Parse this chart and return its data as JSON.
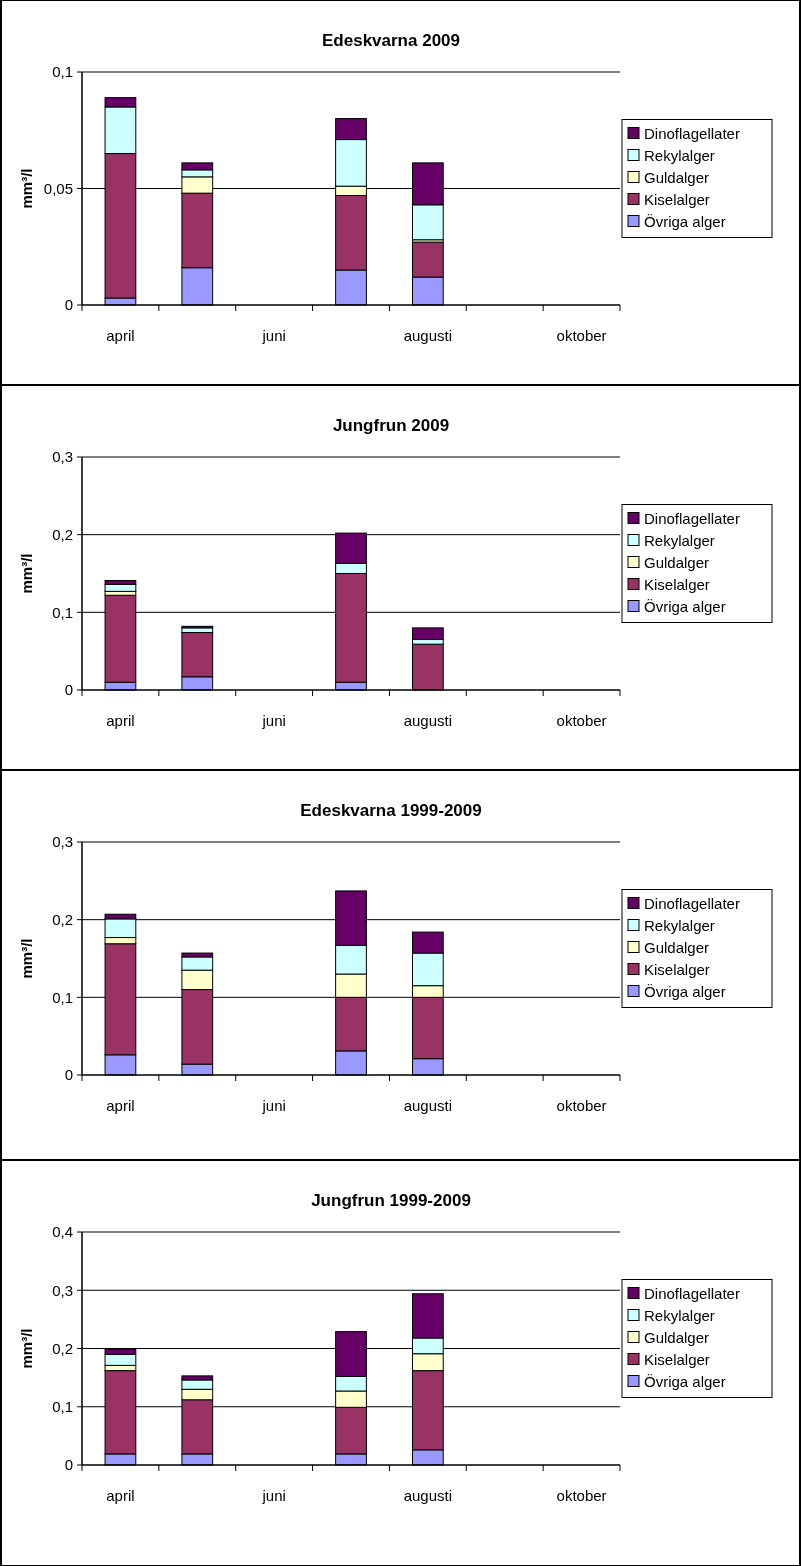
{
  "chart_data": [
    {
      "type": "bar",
      "title": "Edeskvarna  2009",
      "ylabel": "mm³/l",
      "categories": [
        "april",
        null,
        "juni",
        null,
        "augusti",
        null,
        "oktober"
      ],
      "stacked": true,
      "grid": "y",
      "legend": "right",
      "ylim": [
        0,
        0.1
      ],
      "yticks": [
        {
          "value": 0,
          "label": "0"
        },
        {
          "value": 0.05,
          "label": "0,05"
        },
        {
          "value": 0.1,
          "label": "0,1"
        }
      ],
      "series": [
        {
          "name": "Övriga alger",
          "color": "#9999ff",
          "values": [
            0.003,
            0.016,
            null,
            0.015,
            0.012,
            null,
            null
          ]
        },
        {
          "name": "Kiselalger",
          "color": "#993366",
          "values": [
            0.062,
            0.032,
            null,
            0.032,
            0.015,
            null,
            null
          ]
        },
        {
          "name": "Guldalger",
          "color": "#ffffcc",
          "values": [
            0,
            0.007,
            null,
            0.004,
            0.001,
            null,
            null
          ]
        },
        {
          "name": "Rekylalger",
          "color": "#ccffff",
          "values": [
            0.02,
            0.003,
            null,
            0.02,
            0.015,
            null,
            null
          ]
        },
        {
          "name": "Dinoflagellater",
          "color": "#660066",
          "values": [
            0.004,
            0.003,
            null,
            0.009,
            0.018,
            null,
            null
          ]
        }
      ]
    },
    {
      "type": "bar",
      "title": "Jungfrun 2009",
      "ylabel": "mm³/l",
      "categories": [
        "april",
        null,
        "juni",
        null,
        "augusti",
        null,
        "oktober"
      ],
      "stacked": true,
      "grid": "y",
      "legend": "right",
      "ylim": [
        0,
        0.3
      ],
      "yticks": [
        {
          "value": 0,
          "label": "0"
        },
        {
          "value": 0.1,
          "label": "0,1"
        },
        {
          "value": 0.2,
          "label": "0,2"
        },
        {
          "value": 0.3,
          "label": "0,3"
        }
      ],
      "series": [
        {
          "name": "Övriga alger",
          "color": "#9999ff",
          "values": [
            0.01,
            0.017,
            null,
            0.01,
            null,
            null,
            null
          ]
        },
        {
          "name": "Kiselalger",
          "color": "#993366",
          "values": [
            0.112,
            0.057,
            null,
            0.14,
            0.059,
            null,
            null
          ]
        },
        {
          "name": "Guldalger",
          "color": "#ffffcc",
          "values": [
            0.005,
            null,
            null,
            null,
            null,
            null,
            null
          ]
        },
        {
          "name": "Rekylalger",
          "color": "#ccffff",
          "values": [
            0.009,
            0.006,
            null,
            0.013,
            0.006,
            null,
            null
          ]
        },
        {
          "name": "Dinoflagellater",
          "color": "#660066",
          "values": [
            0.005,
            0.002,
            null,
            0.039,
            0.015,
            null,
            null
          ]
        }
      ]
    },
    {
      "type": "bar",
      "title": "Edeskvarna  1999-2009",
      "ylabel": "mm³/l",
      "categories": [
        "april",
        null,
        "juni",
        null,
        "augusti",
        null,
        "oktober"
      ],
      "stacked": true,
      "grid": "y",
      "legend": "right",
      "ylim": [
        0,
        0.3
      ],
      "yticks": [
        {
          "value": 0,
          "label": "0"
        },
        {
          "value": 0.1,
          "label": "0,1"
        },
        {
          "value": 0.2,
          "label": "0,2"
        },
        {
          "value": 0.3,
          "label": "0,3"
        }
      ],
      "series": [
        {
          "name": "Övriga alger",
          "color": "#9999ff",
          "values": [
            0.026,
            0.014,
            null,
            0.031,
            0.021,
            null,
            null
          ]
        },
        {
          "name": "Kiselalger",
          "color": "#993366",
          "values": [
            0.143,
            0.096,
            null,
            0.069,
            0.079,
            null,
            null
          ]
        },
        {
          "name": "Guldalger",
          "color": "#ffffcc",
          "values": [
            0.008,
            0.025,
            null,
            0.03,
            0.015,
            null,
            null
          ]
        },
        {
          "name": "Rekylalger",
          "color": "#ccffff",
          "values": [
            0.024,
            0.017,
            null,
            0.037,
            0.042,
            null,
            null
          ]
        },
        {
          "name": "Dinoflagellater",
          "color": "#660066",
          "values": [
            0.006,
            0.005,
            null,
            0.07,
            0.027,
            null,
            null
          ]
        }
      ]
    },
    {
      "type": "bar",
      "title": "Jungfrun 1999-2009",
      "ylabel": "mm³/l",
      "categories": [
        "april",
        null,
        "juni",
        null,
        "augusti",
        null,
        "oktober"
      ],
      "stacked": true,
      "grid": "y",
      "legend": "right",
      "ylim": [
        0,
        0.4
      ],
      "yticks": [
        {
          "value": 0,
          "label": "0"
        },
        {
          "value": 0.1,
          "label": "0,1"
        },
        {
          "value": 0.2,
          "label": "0,2"
        },
        {
          "value": 0.3,
          "label": "0,3"
        },
        {
          "value": 0.4,
          "label": "0,4"
        }
      ],
      "series": [
        {
          "name": "Övriga alger",
          "color": "#9999ff",
          "values": [
            0.019,
            0.019,
            null,
            0.019,
            0.026,
            null,
            null
          ]
        },
        {
          "name": "Kiselalger",
          "color": "#993366",
          "values": [
            0.143,
            0.093,
            null,
            0.08,
            0.136,
            null,
            null
          ]
        },
        {
          "name": "Guldalger",
          "color": "#ffffcc",
          "values": [
            0.009,
            0.018,
            null,
            0.028,
            0.029,
            null,
            null
          ]
        },
        {
          "name": "Rekylalger",
          "color": "#ccffff",
          "values": [
            0.019,
            0.016,
            null,
            0.025,
            0.027,
            null,
            null
          ]
        },
        {
          "name": "Dinoflagellater",
          "color": "#660066",
          "values": [
            0.009,
            0.007,
            null,
            0.077,
            0.076,
            null,
            null
          ]
        }
      ]
    }
  ]
}
